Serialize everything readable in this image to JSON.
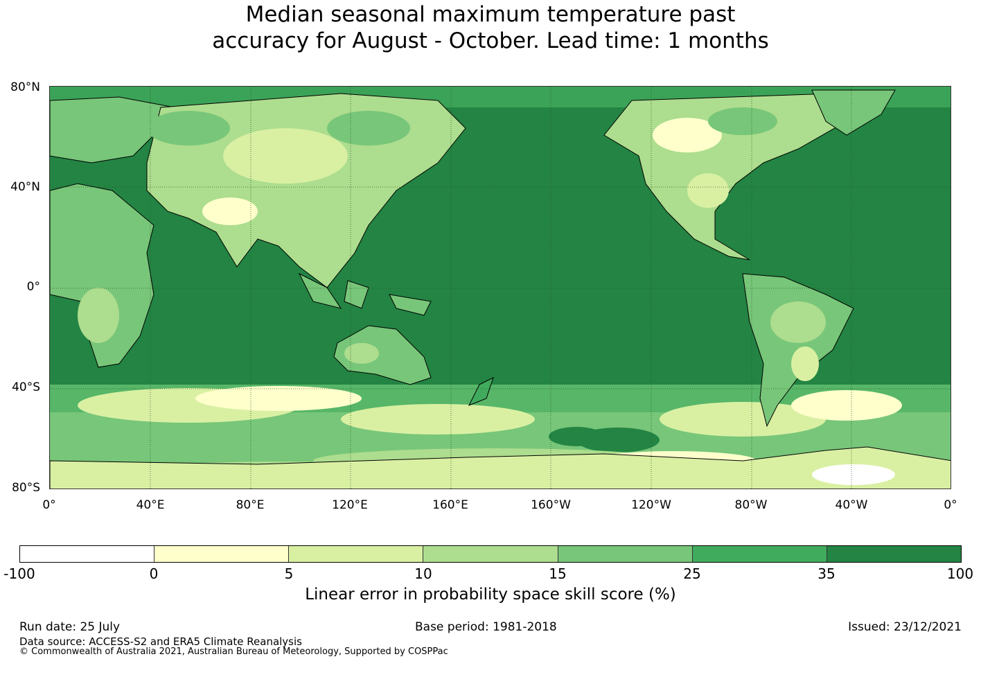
{
  "title": {
    "line1": "Median seasonal maximum temperature past",
    "line2": "accuracy for August - October. Lead time: 1 months"
  },
  "map": {
    "lat_labels": [
      "80°N",
      "40°N",
      "0°",
      "40°S",
      "80°S"
    ],
    "lon_labels": [
      "0°",
      "40°E",
      "80°E",
      "120°E",
      "160°E",
      "160°W",
      "120°W",
      "80°W",
      "40°W",
      "0°"
    ],
    "colors": {
      "ocean_base": "#238443",
      "land_base": "#78c679",
      "gridline": "#2b5a2b",
      "coastline": "#000000"
    }
  },
  "colorbar": {
    "ticks": [
      "-100",
      "0",
      "5",
      "10",
      "15",
      "25",
      "35",
      "100"
    ],
    "colors": [
      "#ffffff",
      "#ffffcc",
      "#d9f0a3",
      "#addd8e",
      "#78c679",
      "#41ab5d",
      "#238443"
    ],
    "label": "Linear error in probability space skill score (%)"
  },
  "footer": {
    "run_date": "Run date: 25 July",
    "base_period": "Base period: 1981-2018",
    "issued": "Issued: 23/12/2021",
    "data_source": "Data source: ACCESS-S2 and ERA5 Climate Reanalysis",
    "copyright": "© Commonwealth of Australia 2021, Australian Bureau of Meteorology, Supported by COSPPac"
  }
}
